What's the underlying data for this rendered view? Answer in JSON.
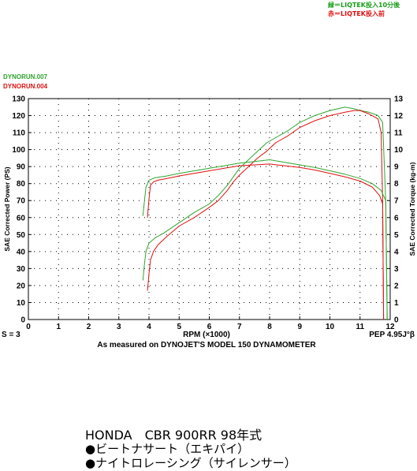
{
  "top_legend": [
    {
      "mark": "緑",
      "text": "＝LIQTEK投入10分後",
      "color": "#1a9e1a"
    },
    {
      "mark": "赤",
      "text": "＝LIQTEK投入前",
      "color": "#e01010"
    }
  ],
  "chart_data": {
    "type": "line",
    "run_labels": [
      {
        "text": "DYNORUN.007",
        "color": "#2fa52f"
      },
      {
        "text": "DYNORUN.004",
        "color": "#e01010"
      }
    ],
    "xlabel": "RPM (×1000)",
    "ylabel_left": "SAE Corrected Power (PS)",
    "ylabel_right": "SAE Corrected Torque (kg-m)",
    "xlim": [
      0,
      12
    ],
    "ylim_left": [
      0,
      130
    ],
    "ylim_right": [
      0,
      13
    ],
    "x_ticks": [
      "0",
      "1",
      "2",
      "3",
      "4",
      "5",
      "6",
      "7",
      "8",
      "9",
      "10",
      "11",
      "12"
    ],
    "y_ticks_left": [
      "0",
      "10",
      "20",
      "30",
      "40",
      "50",
      "60",
      "70",
      "80",
      "90",
      "100",
      "110",
      "120",
      "130"
    ],
    "y_ticks_right": [
      "0",
      "1",
      "2",
      "3",
      "4",
      "5",
      "6",
      "7",
      "8",
      "9",
      "10",
      "11",
      "12",
      "13"
    ],
    "grid": true,
    "footer_left": "S = 3",
    "footer_right": "PEP 4.95J°β",
    "footer_center": "As measured on DYNOJET'S MODEL 150 DYNAMOMETER",
    "series": [
      {
        "quantity": "power",
        "color": "#2fa52f",
        "x": [
          3.8,
          3.85,
          3.9,
          4.0,
          4.2,
          4.5,
          5.0,
          5.5,
          6.0,
          6.3,
          6.6,
          6.8,
          7.0,
          7.3,
          7.6,
          7.9,
          8.2,
          8.6,
          9.0,
          9.5,
          10.0,
          10.5,
          10.8,
          11.0,
          11.3,
          11.6,
          11.75,
          11.85,
          11.9
        ],
        "values": [
          23,
          33,
          40,
          45,
          48,
          51,
          57,
          63,
          68,
          73,
          79,
          84,
          89,
          94,
          99,
          104,
          107,
          111,
          116,
          120,
          123,
          125,
          124,
          123,
          122,
          120,
          116,
          70,
          0
        ]
      },
      {
        "quantity": "power",
        "color": "#e01010",
        "x": [
          3.95,
          4.0,
          4.05,
          4.15,
          4.3,
          4.6,
          5.0,
          5.5,
          6.0,
          6.3,
          6.6,
          6.8,
          7.0,
          7.3,
          7.6,
          7.9,
          8.2,
          8.6,
          9.0,
          9.5,
          10.0,
          10.5,
          10.8,
          11.0,
          11.3,
          11.6,
          11.7,
          11.75,
          11.78
        ],
        "values": [
          17,
          27,
          35,
          40,
          44,
          49,
          55,
          60,
          66,
          70,
          76,
          81,
          85,
          90,
          95,
          99,
          104,
          108,
          113,
          117,
          120,
          122,
          123,
          123,
          121,
          118,
          110,
          70,
          0
        ]
      },
      {
        "quantity": "torque",
        "color": "#2fa52f",
        "x": [
          3.8,
          3.85,
          3.9,
          4.0,
          4.2,
          4.6,
          5.0,
          5.5,
          6.0,
          6.5,
          7.0,
          7.5,
          8.0,
          8.5,
          9.0,
          9.5,
          10.0,
          10.5,
          11.0,
          11.4,
          11.7,
          11.85,
          11.9
        ],
        "values": [
          6.1,
          7.0,
          7.8,
          8.2,
          8.35,
          8.45,
          8.6,
          8.75,
          8.9,
          9.05,
          9.2,
          9.3,
          9.4,
          9.25,
          9.1,
          8.95,
          8.75,
          8.55,
          8.3,
          8.0,
          7.6,
          7.0,
          0
        ]
      },
      {
        "quantity": "torque",
        "color": "#e01010",
        "x": [
          3.95,
          4.0,
          4.05,
          4.15,
          4.3,
          4.6,
          5.0,
          5.5,
          6.0,
          6.5,
          7.0,
          7.5,
          8.0,
          8.5,
          9.0,
          9.5,
          10.0,
          10.5,
          11.0,
          11.4,
          11.65,
          11.75,
          11.78
        ],
        "values": [
          6.0,
          7.1,
          7.9,
          8.1,
          8.2,
          8.3,
          8.45,
          8.6,
          8.75,
          8.9,
          9.05,
          9.1,
          9.15,
          9.05,
          8.95,
          8.8,
          8.6,
          8.4,
          8.15,
          7.8,
          7.3,
          6.8,
          0
        ]
      }
    ]
  },
  "caption": {
    "line1": "HONDA　CBR 900RR 98年式",
    "line2": "●ビートナサート（エキパイ）",
    "line3": "●ナイトロレーシング（サイレンサー）"
  }
}
